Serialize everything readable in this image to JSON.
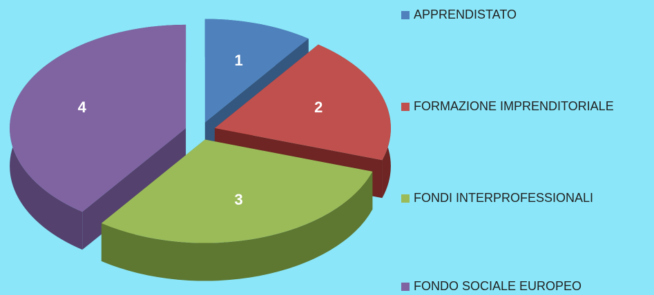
{
  "chart_data": {
    "type": "pie3d",
    "categories": [
      "APPRENDISTATO",
      "FORMAZIONE IMPRENDITORIALE",
      "FONDI INTERPROFESSIONALI",
      "FONDO SOCIALE EUROPEO"
    ],
    "values": [
      10,
      20,
      30,
      40
    ],
    "slice_labels": [
      "1",
      "2",
      "3",
      "4"
    ],
    "colors": [
      "#4f81bd",
      "#c0504d",
      "#9bbb59",
      "#8064a2"
    ],
    "side_colors": [
      "#34577f",
      "#6e2523",
      "#5e7731",
      "#54416e"
    ]
  }
}
